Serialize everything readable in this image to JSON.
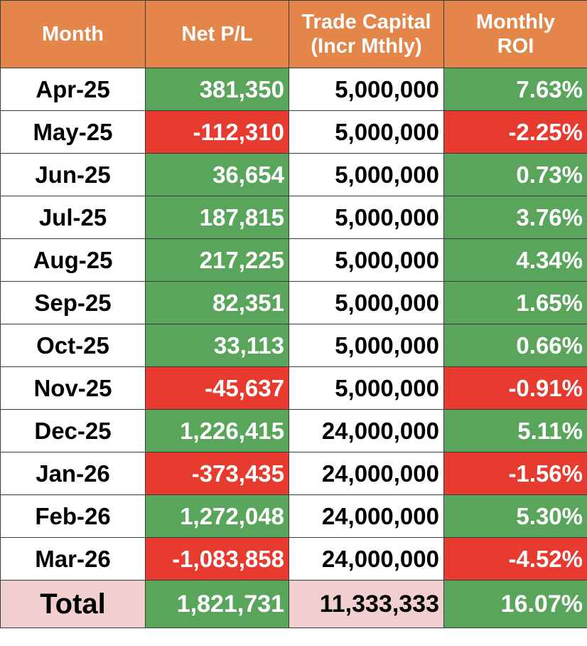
{
  "header": {
    "month": "Month",
    "net_pl": "Net P/L",
    "trade_capital_line1": "Trade Capital",
    "trade_capital_line2": "(Incr Mthly)",
    "monthly_roi_line1": "Monthly",
    "monthly_roi_line2": "ROI"
  },
  "colors": {
    "header_bg": "#e4854a",
    "positive_bg": "#5aa55c",
    "negative_bg": "#e63b2e",
    "total_label_bg": "#f1cfcf"
  },
  "rows": [
    {
      "month": "Apr-25",
      "net_pl": "381,350",
      "capital": "5,000,000",
      "roi": "7.63%",
      "status": "positive"
    },
    {
      "month": "May-25",
      "net_pl": "-112,310",
      "capital": "5,000,000",
      "roi": "-2.25%",
      "status": "negative"
    },
    {
      "month": "Jun-25",
      "net_pl": "36,654",
      "capital": "5,000,000",
      "roi": "0.73%",
      "status": "positive"
    },
    {
      "month": "Jul-25",
      "net_pl": "187,815",
      "capital": "5,000,000",
      "roi": "3.76%",
      "status": "positive"
    },
    {
      "month": "Aug-25",
      "net_pl": "217,225",
      "capital": "5,000,000",
      "roi": "4.34%",
      "status": "positive"
    },
    {
      "month": "Sep-25",
      "net_pl": "82,351",
      "capital": "5,000,000",
      "roi": "1.65%",
      "status": "positive"
    },
    {
      "month": "Oct-25",
      "net_pl": "33,113",
      "capital": "5,000,000",
      "roi": "0.66%",
      "status": "positive"
    },
    {
      "month": "Nov-25",
      "net_pl": "-45,637",
      "capital": "5,000,000",
      "roi": "-0.91%",
      "status": "negative"
    },
    {
      "month": "Dec-25",
      "net_pl": "1,226,415",
      "capital": "24,000,000",
      "roi": "5.11%",
      "status": "positive"
    },
    {
      "month": "Jan-26",
      "net_pl": "-373,435",
      "capital": "24,000,000",
      "roi": "-1.56%",
      "status": "negative"
    },
    {
      "month": "Feb-26",
      "net_pl": "1,272,048",
      "capital": "24,000,000",
      "roi": "5.30%",
      "status": "positive"
    },
    {
      "month": "Mar-26",
      "net_pl": "-1,083,858",
      "capital": "24,000,000",
      "roi": "-4.52%",
      "status": "negative"
    }
  ],
  "total": {
    "label": "Total",
    "net_pl": "1,821,731",
    "capital": "11,333,333",
    "roi": "16.07%",
    "status": "positive"
  }
}
